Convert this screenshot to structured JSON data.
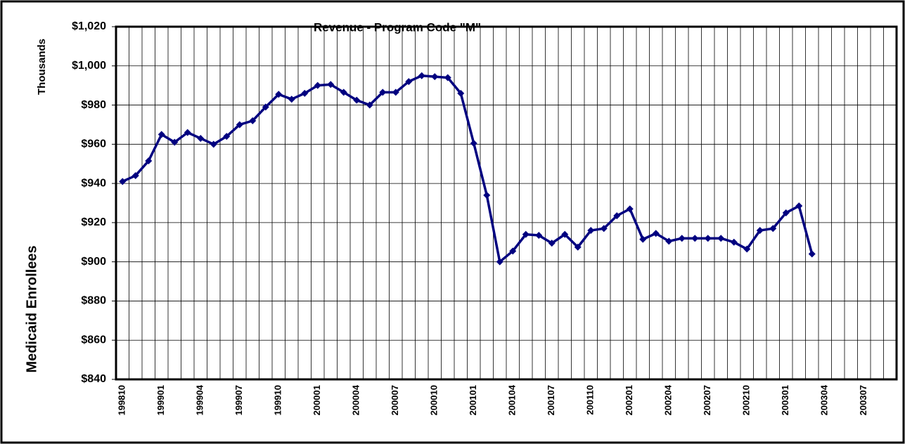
{
  "chart_data": {
    "type": "line",
    "title": "Revenue - Program Code \"M\"",
    "ylabel": "Medicaid Enrollees",
    "yunits": "Thousands",
    "categories": [
      "199810",
      null,
      null,
      "199901",
      null,
      null,
      "199904",
      null,
      null,
      "199907",
      null,
      null,
      "199910",
      null,
      null,
      "200001",
      null,
      null,
      "200004",
      null,
      null,
      "200007",
      null,
      null,
      "200010",
      null,
      null,
      "200101",
      null,
      null,
      "200104",
      null,
      null,
      "200107",
      null,
      null,
      "200110",
      null,
      null,
      "200201",
      null,
      null,
      "200204",
      null,
      null,
      "200207",
      null,
      null,
      "200210",
      null,
      null,
      "200301",
      null,
      null,
      "200304",
      null,
      null,
      "200307",
      null,
      null
    ],
    "series": [
      {
        "name": "Revenue",
        "color": "#000080",
        "values": [
          941,
          944,
          951.5,
          965,
          961,
          966,
          963,
          960,
          964,
          970,
          972,
          979,
          985.5,
          983,
          986,
          990,
          990.5,
          986.5,
          982.5,
          980,
          986.5,
          986.5,
          992,
          995,
          994.5,
          994,
          986,
          960.5,
          934,
          900,
          905.5,
          914,
          913.5,
          909.5,
          914,
          907.5,
          916,
          917,
          923.5,
          927,
          911.5,
          914.5,
          910.5,
          912,
          912,
          912,
          912,
          910,
          906.5,
          916,
          917,
          925,
          928.5,
          904,
          null,
          null,
          null,
          null,
          null,
          null
        ]
      }
    ],
    "ylim": [
      840,
      1020
    ],
    "yticks": [
      {
        "value": 840,
        "label": "$840"
      },
      {
        "value": 860,
        "label": "$860"
      },
      {
        "value": 880,
        "label": "$880"
      },
      {
        "value": 900,
        "label": "$900"
      },
      {
        "value": 920,
        "label": "$920"
      },
      {
        "value": 940,
        "label": "$940"
      },
      {
        "value": 960,
        "label": "$960"
      },
      {
        "value": 980,
        "label": "$980"
      },
      {
        "value": 1000,
        "label": "$1,000"
      },
      {
        "value": 1020,
        "label": "$1,020"
      }
    ],
    "grid": true
  }
}
